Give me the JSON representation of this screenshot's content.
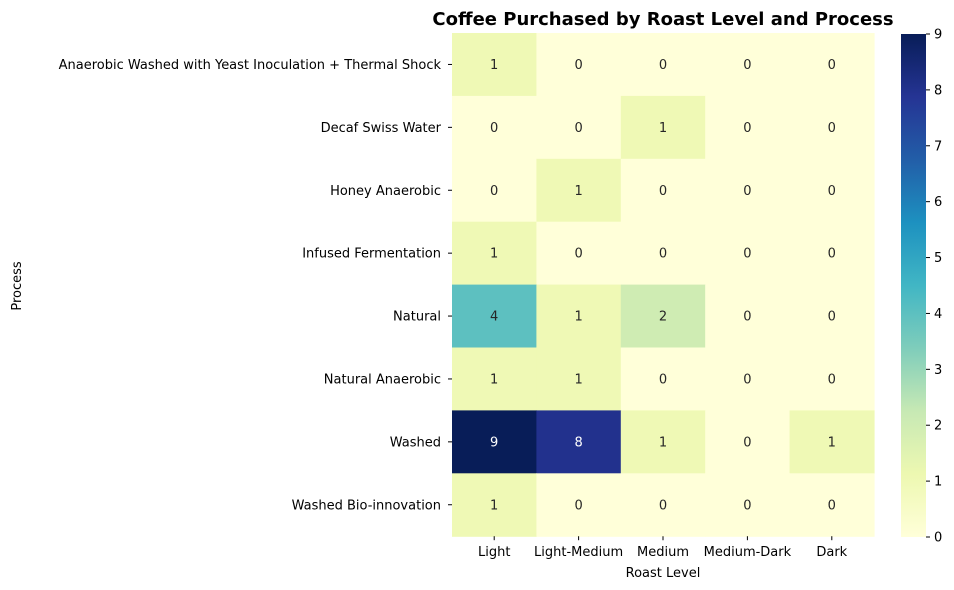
{
  "chart_data": {
    "type": "heatmap",
    "title": "Coffee Purchased by Roast Level and Process",
    "xlabel": "Roast Level",
    "ylabel": "Process",
    "x_categories": [
      "Light",
      "Light-Medium",
      "Medium",
      "Medium-Dark",
      "Dark"
    ],
    "y_categories": [
      "Anaerobic Washed with Yeast Inoculation + Thermal Shock",
      "Decaf Swiss Water",
      "Honey Anaerobic",
      "Infused Fermentation",
      "Natural",
      "Natural Anaerobic",
      "Washed",
      "Washed Bio-innovation"
    ],
    "values": [
      [
        1,
        0,
        0,
        0,
        0
      ],
      [
        0,
        0,
        1,
        0,
        0
      ],
      [
        0,
        1,
        0,
        0,
        0
      ],
      [
        1,
        0,
        0,
        0,
        0
      ],
      [
        4,
        1,
        2,
        0,
        0
      ],
      [
        1,
        1,
        0,
        0,
        0
      ],
      [
        9,
        8,
        1,
        0,
        1
      ],
      [
        1,
        0,
        0,
        0,
        0
      ]
    ],
    "colorbar": {
      "colormap": "YlGnBu",
      "range": [
        0,
        9
      ],
      "ticks": [
        "0",
        "1",
        "2",
        "3",
        "4",
        "5",
        "6",
        "7",
        "8",
        "9"
      ]
    },
    "annotations": true,
    "grid": false
  }
}
